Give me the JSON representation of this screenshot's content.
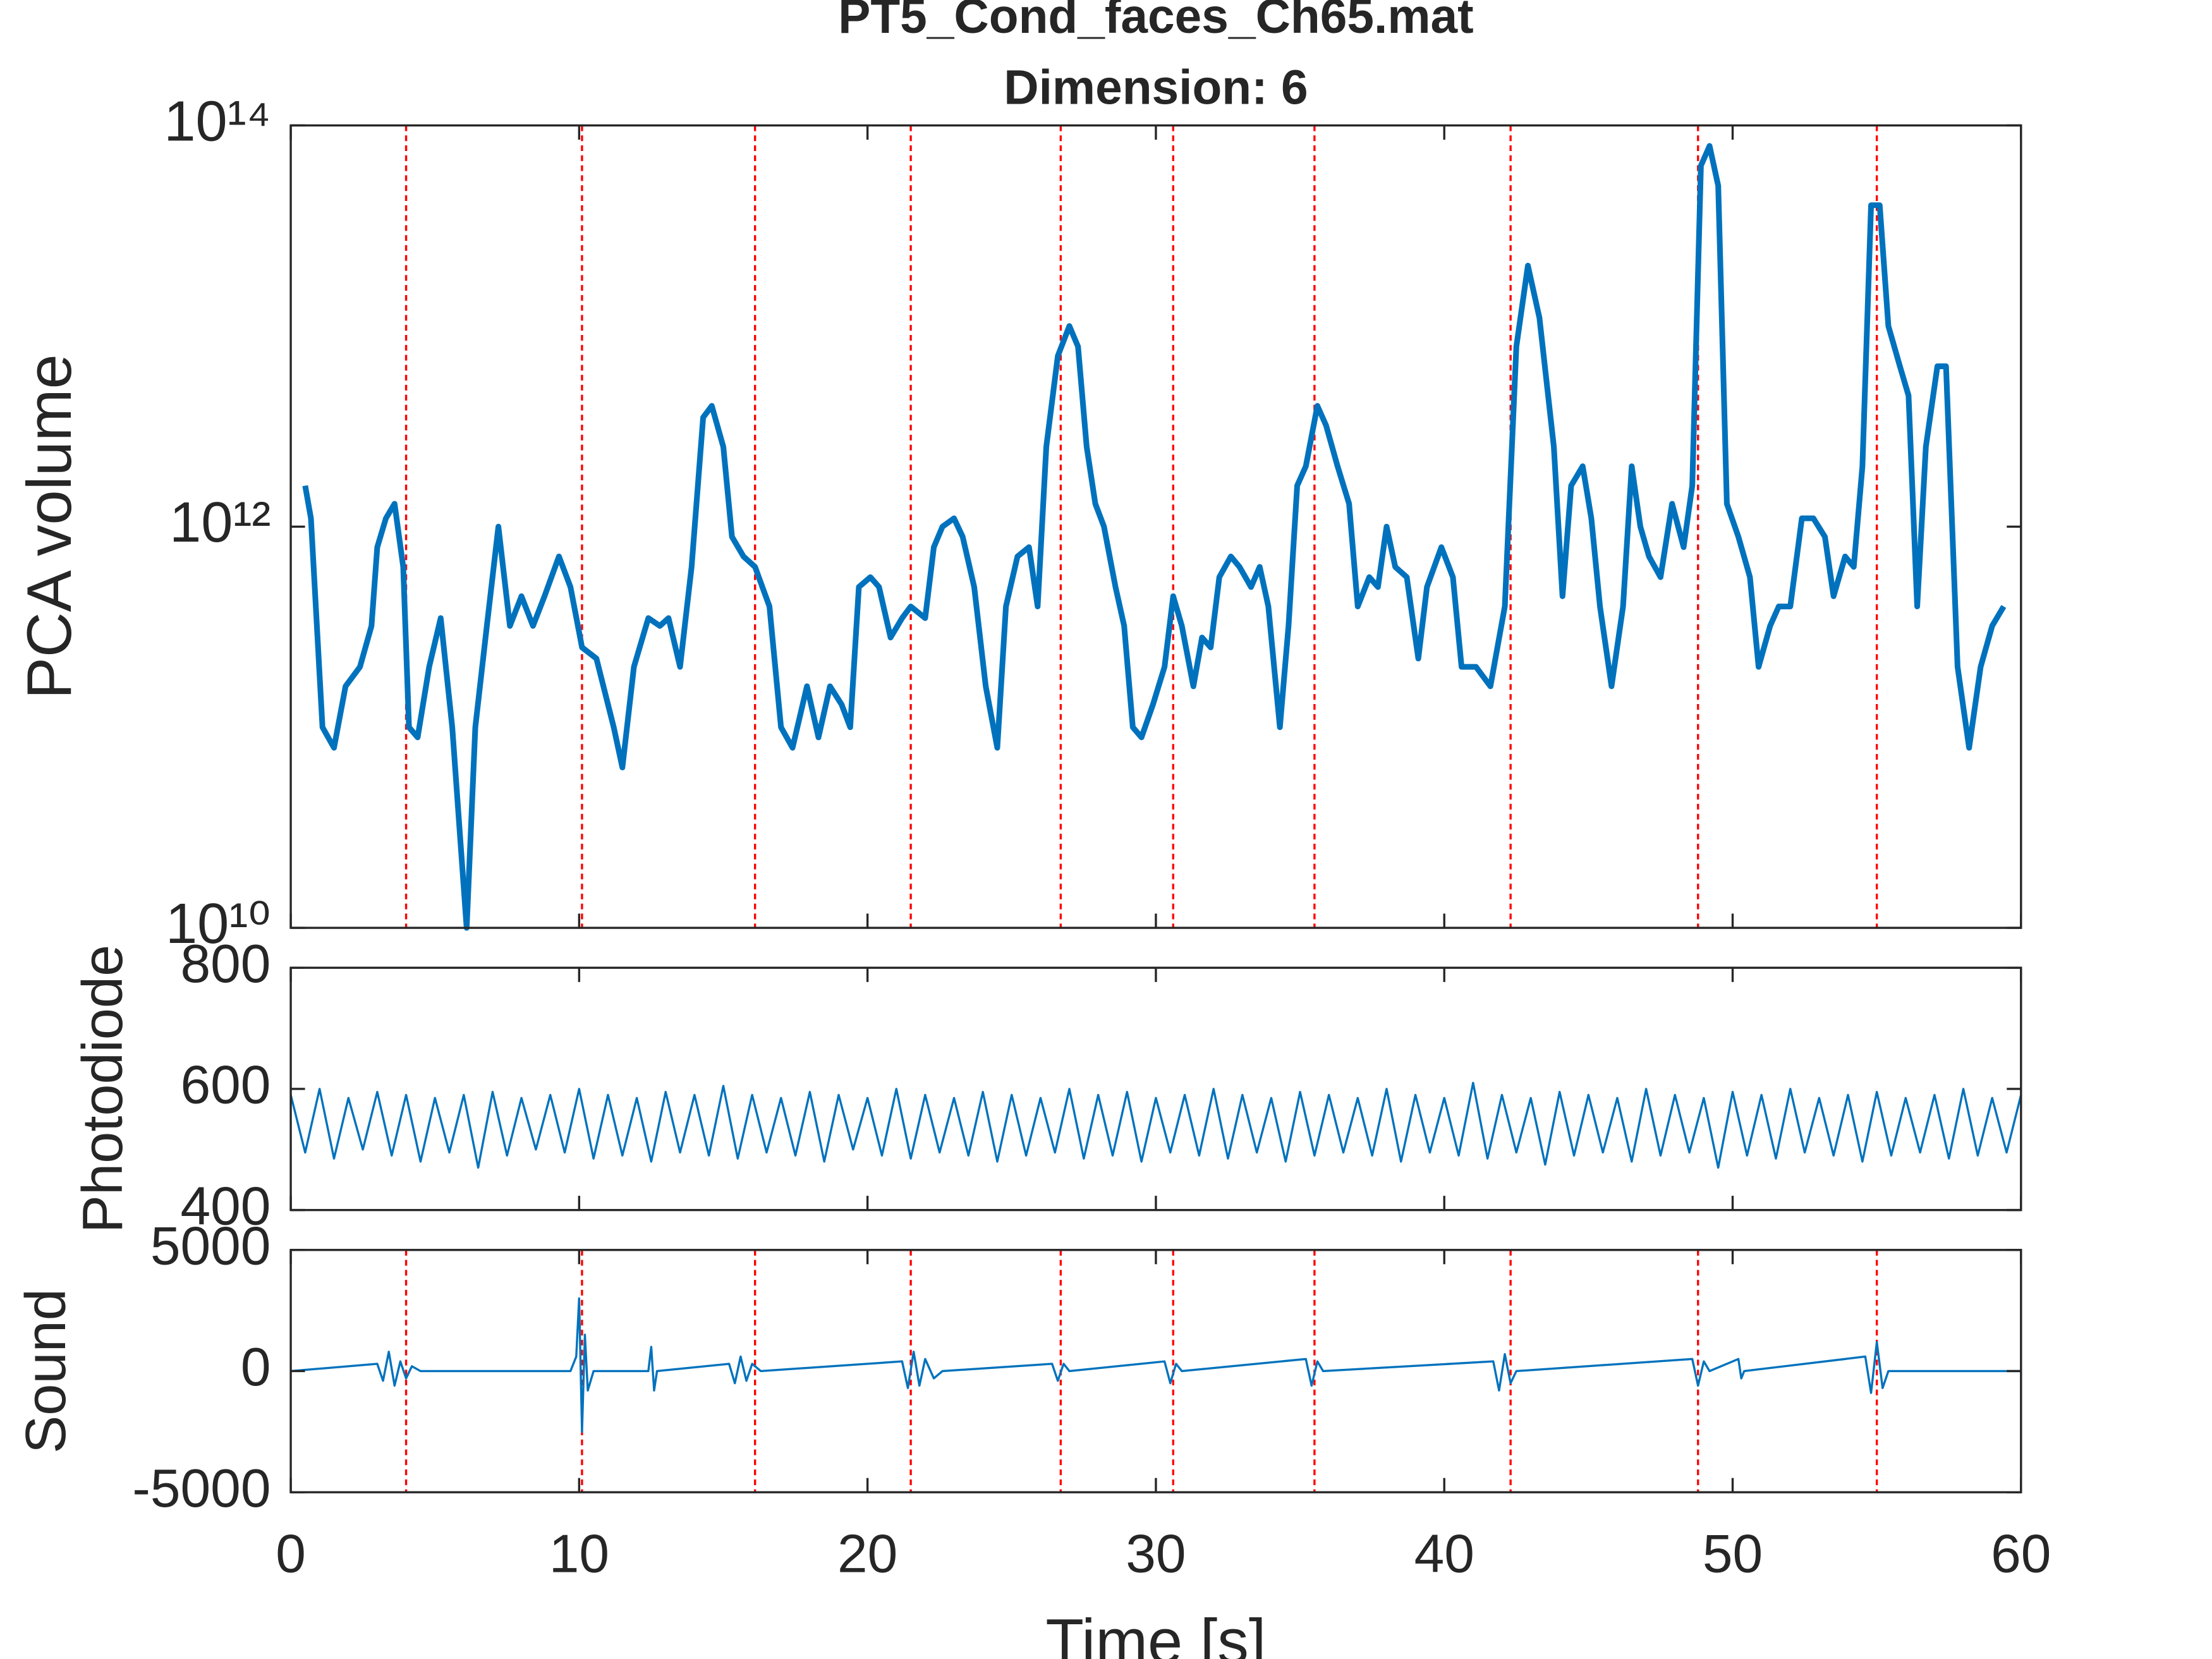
{
  "chart_data": [
    {
      "type": "line",
      "title": "PT5_Cond_faces_Ch65.mat",
      "subtitle": "Dimension: 6",
      "y_label": "PCA volume",
      "log_y": true,
      "xlim": [
        0,
        60
      ],
      "xticks": [
        0,
        10,
        20,
        30,
        40,
        50,
        60
      ],
      "ylim": [
        10000000000,
        100000000000000
      ],
      "yticks": [
        {
          "value": 10000000000,
          "label": "10¹⁰"
        },
        {
          "value": 1000000000000,
          "label": "10¹²"
        },
        {
          "value": 100000000000000,
          "label": "10¹⁴"
        }
      ],
      "event_lines": [
        4.0,
        10.1,
        16.1,
        21.5,
        26.7,
        30.6,
        35.5,
        42.3,
        48.8,
        55.0
      ],
      "event_color": "#ff0000",
      "x": [
        0.5,
        0.7,
        1.1,
        1.5,
        1.9,
        2.4,
        2.8,
        3.0,
        3.3,
        3.6,
        3.9,
        4.1,
        4.4,
        4.8,
        5.2,
        5.6,
        5.9,
        6.1,
        6.4,
        6.8,
        7.2,
        7.6,
        8.0,
        8.4,
        8.8,
        9.3,
        9.7,
        10.1,
        10.6,
        11.2,
        11.5,
        11.9,
        12.4,
        12.8,
        13.1,
        13.5,
        13.9,
        14.3,
        14.6,
        15.0,
        15.3,
        15.7,
        16.1,
        16.6,
        17.0,
        17.4,
        17.9,
        18.3,
        18.7,
        19.1,
        19.4,
        19.7,
        20.1,
        20.4,
        20.8,
        21.2,
        21.5,
        22.0,
        22.3,
        22.6,
        23.0,
        23.3,
        23.7,
        24.1,
        24.5,
        24.8,
        25.2,
        25.6,
        25.9,
        26.2,
        26.6,
        27.0,
        27.3,
        27.6,
        27.9,
        28.2,
        28.6,
        28.9,
        29.2,
        29.5,
        29.9,
        30.3,
        30.6,
        30.9,
        31.3,
        31.6,
        31.9,
        32.2,
        32.6,
        32.9,
        33.3,
        33.6,
        33.9,
        34.3,
        34.6,
        34.9,
        35.2,
        35.6,
        35.9,
        36.3,
        36.7,
        37.0,
        37.4,
        37.7,
        38.0,
        38.3,
        38.7,
        39.1,
        39.4,
        39.9,
        40.3,
        40.6,
        41.1,
        41.6,
        42.1,
        42.5,
        42.9,
        43.3,
        43.8,
        44.1,
        44.4,
        44.8,
        45.1,
        45.4,
        45.8,
        46.2,
        46.5,
        46.8,
        47.1,
        47.5,
        47.9,
        48.3,
        48.6,
        48.9,
        49.2,
        49.5,
        49.8,
        50.2,
        50.6,
        50.9,
        51.3,
        51.6,
        52.0,
        52.4,
        52.8,
        53.2,
        53.5,
        53.9,
        54.2,
        54.5,
        54.8,
        55.1,
        55.4,
        55.8,
        56.1,
        56.4,
        56.7,
        57.1,
        57.4,
        57.8,
        58.2,
        58.6,
        59.0,
        59.4
      ],
      "series": [
        {
          "color": "#0072bd",
          "values": [
            1600000000000.0,
            1100000000000.0,
            100000000000.0,
            79000000000.0,
            160000000000.0,
            200000000000.0,
            320000000000.0,
            790000000000.0,
            1100000000000.0,
            1300000000000.0,
            630000000000.0,
            100000000000.0,
            89000000000.0,
            200000000000.0,
            350000000000.0,
            100000000000.0,
            25000000000.0,
            10000000000.0,
            100000000000.0,
            320000000000.0,
            1000000000000.0,
            320000000000.0,
            450000000000.0,
            320000000000.0,
            450000000000.0,
            710000000000.0,
            500000000000.0,
            250000000000.0,
            220000000000.0,
            100000000000.0,
            63000000000.0,
            200000000000.0,
            350000000000.0,
            320000000000.0,
            350000000000.0,
            200000000000.0,
            630000000000.0,
            3500000000000.0,
            4000000000000.0,
            2500000000000.0,
            890000000000.0,
            710000000000.0,
            630000000000.0,
            400000000000.0,
            100000000000.0,
            79000000000.0,
            160000000000.0,
            89000000000.0,
            160000000000.0,
            130000000000.0,
            100000000000.0,
            500000000000.0,
            560000000000.0,
            500000000000.0,
            280000000000.0,
            350000000000.0,
            400000000000.0,
            350000000000.0,
            790000000000.0,
            1000000000000.0,
            1100000000000.0,
            890000000000.0,
            500000000000.0,
            160000000000.0,
            79000000000.0,
            400000000000.0,
            710000000000.0,
            790000000000.0,
            400000000000.0,
            2500000000000.0,
            7100000000000.0,
            10000000000000.0,
            7900000000000.0,
            2500000000000.0,
            1300000000000.0,
            1000000000000.0,
            500000000000.0,
            320000000000.0,
            100000000000.0,
            89000000000.0,
            130000000000.0,
            200000000000.0,
            450000000000.0,
            320000000000.0,
            160000000000.0,
            280000000000.0,
            250000000000.0,
            560000000000.0,
            710000000000.0,
            630000000000.0,
            500000000000.0,
            630000000000.0,
            400000000000.0,
            100000000000.0,
            320000000000.0,
            1600000000000.0,
            2000000000000.0,
            4000000000000.0,
            3200000000000.0,
            2000000000000.0,
            1300000000000.0,
            400000000000.0,
            560000000000.0,
            500000000000.0,
            1000000000000.0,
            630000000000.0,
            560000000000.0,
            220000000000.0,
            500000000000.0,
            790000000000.0,
            560000000000.0,
            200000000000.0,
            200000000000.0,
            160000000000.0,
            400000000000.0,
            7900000000000.0,
            20000000000000.0,
            11000000000000.0,
            2500000000000.0,
            450000000000.0,
            1600000000000.0,
            2000000000000.0,
            1100000000000.0,
            400000000000.0,
            160000000000.0,
            400000000000.0,
            2000000000000.0,
            1000000000000.0,
            710000000000.0,
            560000000000.0,
            1300000000000.0,
            790000000000.0,
            1600000000000.0,
            63000000000000.0,
            79000000000000.0,
            50000000000000.0,
            1300000000000.0,
            890000000000.0,
            560000000000.0,
            200000000000.0,
            320000000000.0,
            400000000000.0,
            400000000000.0,
            1100000000000.0,
            1100000000000.0,
            890000000000.0,
            450000000000.0,
            710000000000.0,
            630000000000.0,
            2000000000000.0,
            40000000000000.0,
            40000000000000.0,
            10000000000000.0,
            6300000000000.0,
            4500000000000.0,
            400000000000.0,
            2500000000000.0,
            6300000000000.0,
            6300000000000.0,
            200000000000.0,
            79000000000.0,
            200000000000.0,
            320000000000.0,
            400000000000.0
          ]
        }
      ]
    },
    {
      "type": "line",
      "y_label": "Photodiode",
      "xlim": [
        0,
        60
      ],
      "xticks": [
        0,
        10,
        20,
        30,
        40,
        50,
        60
      ],
      "ylim": [
        400,
        800
      ],
      "yticks": [
        400,
        600,
        800
      ],
      "x": [
        0,
        0.5,
        1,
        1.5,
        2,
        2.5,
        3,
        3.5,
        4,
        4.5,
        5,
        5.5,
        6,
        6.5,
        7,
        7.5,
        8,
        8.5,
        9,
        9.5,
        10,
        10.5,
        11,
        11.5,
        12,
        12.5,
        13,
        13.5,
        14,
        14.5,
        15,
        15.5,
        16,
        16.5,
        17,
        17.5,
        18,
        18.5,
        19,
        19.5,
        20,
        20.5,
        21,
        21.5,
        22,
        22.5,
        23,
        23.5,
        24,
        24.5,
        25,
        25.5,
        26,
        26.5,
        27,
        27.5,
        28,
        28.5,
        29,
        29.5,
        30,
        30.5,
        31,
        31.5,
        32,
        32.5,
        33,
        33.5,
        34,
        34.5,
        35,
        35.5,
        36,
        36.5,
        37,
        37.5,
        38,
        38.5,
        39,
        39.5,
        40,
        40.5,
        41,
        41.5,
        42,
        42.5,
        43,
        43.5,
        44,
        44.5,
        45,
        45.5,
        46,
        46.5,
        47,
        47.5,
        48,
        48.5,
        49,
        49.5,
        50,
        50.5,
        51,
        51.5,
        52,
        52.5,
        53,
        53.5,
        54,
        54.5,
        55,
        55.5,
        56,
        56.5,
        57,
        57.5,
        58,
        58.5,
        59,
        59.5,
        60
      ],
      "series": [
        {
          "color": "#0072bd",
          "values": [
            590,
            495,
            600,
            485,
            585,
            500,
            595,
            490,
            590,
            480,
            585,
            495,
            590,
            470,
            595,
            490,
            585,
            500,
            590,
            495,
            600,
            485,
            590,
            490,
            585,
            480,
            595,
            495,
            590,
            490,
            605,
            485,
            590,
            495,
            585,
            490,
            595,
            480,
            590,
            500,
            585,
            490,
            600,
            485,
            590,
            495,
            585,
            490,
            595,
            480,
            590,
            490,
            585,
            495,
            600,
            485,
            590,
            490,
            595,
            480,
            585,
            495,
            590,
            490,
            600,
            485,
            590,
            495,
            585,
            480,
            595,
            490,
            590,
            495,
            585,
            490,
            600,
            480,
            590,
            495,
            585,
            490,
            610,
            485,
            590,
            495,
            585,
            475,
            595,
            490,
            590,
            495,
            585,
            480,
            600,
            490,
            590,
            495,
            585,
            470,
            595,
            490,
            590,
            485,
            600,
            495,
            585,
            490,
            590,
            480,
            595,
            490,
            585,
            495,
            590,
            485,
            600,
            490,
            585,
            495,
            590
          ]
        }
      ]
    },
    {
      "type": "line",
      "y_label": "Sound",
      "x_label": "Time [s]",
      "xlim": [
        0,
        60
      ],
      "xticks": [
        0,
        10,
        20,
        30,
        40,
        50,
        60
      ],
      "ylim": [
        -5000,
        5000
      ],
      "yticks": [
        -5000,
        0,
        5000
      ],
      "event_lines": [
        4.0,
        10.1,
        16.1,
        21.5,
        26.7,
        30.6,
        35.5,
        42.3,
        48.8,
        55.0
      ],
      "event_color": "#ff0000",
      "x": [
        0,
        3.0,
        3.2,
        3.4,
        3.6,
        3.8,
        4.0,
        4.2,
        4.5,
        9.7,
        9.9,
        10.0,
        10.1,
        10.2,
        10.3,
        10.5,
        12.4,
        12.5,
        12.6,
        12.7,
        15.2,
        15.4,
        15.6,
        15.8,
        16.0,
        16.3,
        21.2,
        21.4,
        21.6,
        21.8,
        22.0,
        22.3,
        22.6,
        26.4,
        26.6,
        26.8,
        27.0,
        30.3,
        30.5,
        30.7,
        30.9,
        35.2,
        35.4,
        35.6,
        35.8,
        41.7,
        41.9,
        42.1,
        42.3,
        42.5,
        48.6,
        48.8,
        49.0,
        49.2,
        50.2,
        50.3,
        50.4,
        54.6,
        54.8,
        55.0,
        55.2,
        55.4,
        60
      ],
      "series": [
        {
          "color": "#0072bd",
          "values": [
            0,
            300,
            -400,
            800,
            -600,
            400,
            -300,
            200,
            0,
            0,
            600,
            3000,
            -2500,
            1500,
            -800,
            0,
            0,
            1000,
            -800,
            0,
            300,
            -500,
            600,
            -400,
            300,
            0,
            400,
            -700,
            800,
            -600,
            500,
            -300,
            0,
            300,
            -400,
            300,
            0,
            400,
            -500,
            300,
            0,
            500,
            -600,
            400,
            0,
            400,
            -800,
            700,
            -500,
            0,
            500,
            -600,
            400,
            0,
            500,
            -300,
            0,
            600,
            -900,
            1200,
            -700,
            0,
            0
          ]
        }
      ]
    }
  ]
}
